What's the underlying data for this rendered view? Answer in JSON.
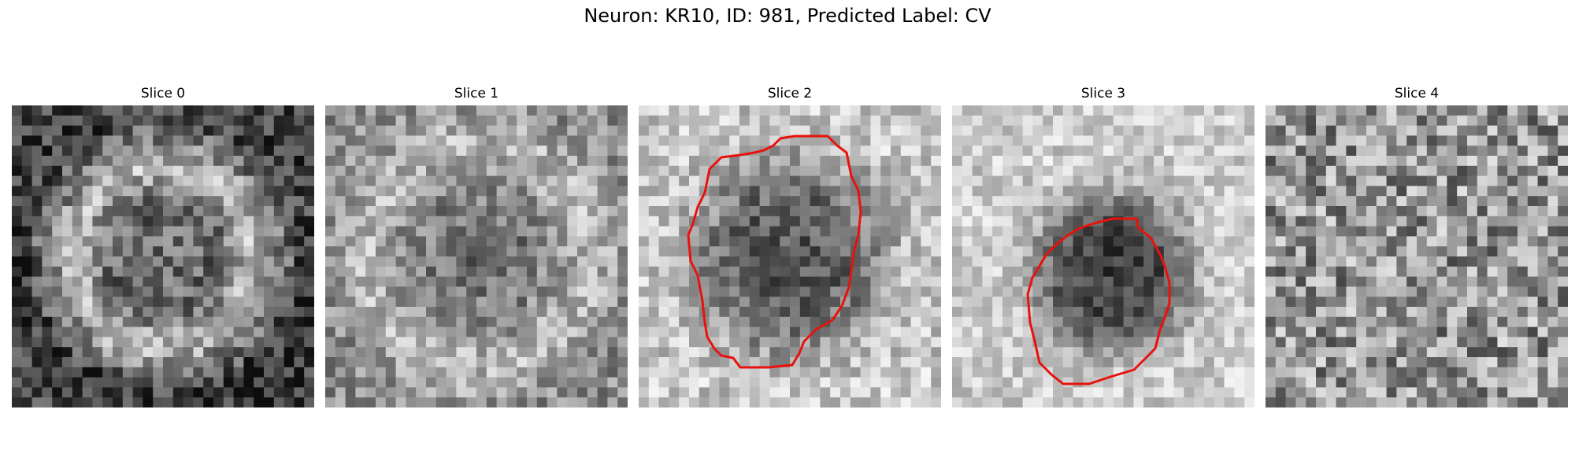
{
  "figure": {
    "title": "Neuron: KR10, ID: 981, Predicted Label: CV",
    "panels": [
      {
        "title": "Slice 0",
        "pattern": "ring",
        "has_contour": false
      },
      {
        "title": "Slice 1",
        "pattern": "faint-ring",
        "has_contour": false
      },
      {
        "title": "Slice 2",
        "pattern": "dark-blob-large",
        "has_contour": true
      },
      {
        "title": "Slice 3",
        "pattern": "dark-blob-small",
        "has_contour": true
      },
      {
        "title": "Slice 4",
        "pattern": "noise",
        "has_contour": false
      }
    ],
    "colormap": "gray",
    "contour_color": "#e8120c"
  }
}
